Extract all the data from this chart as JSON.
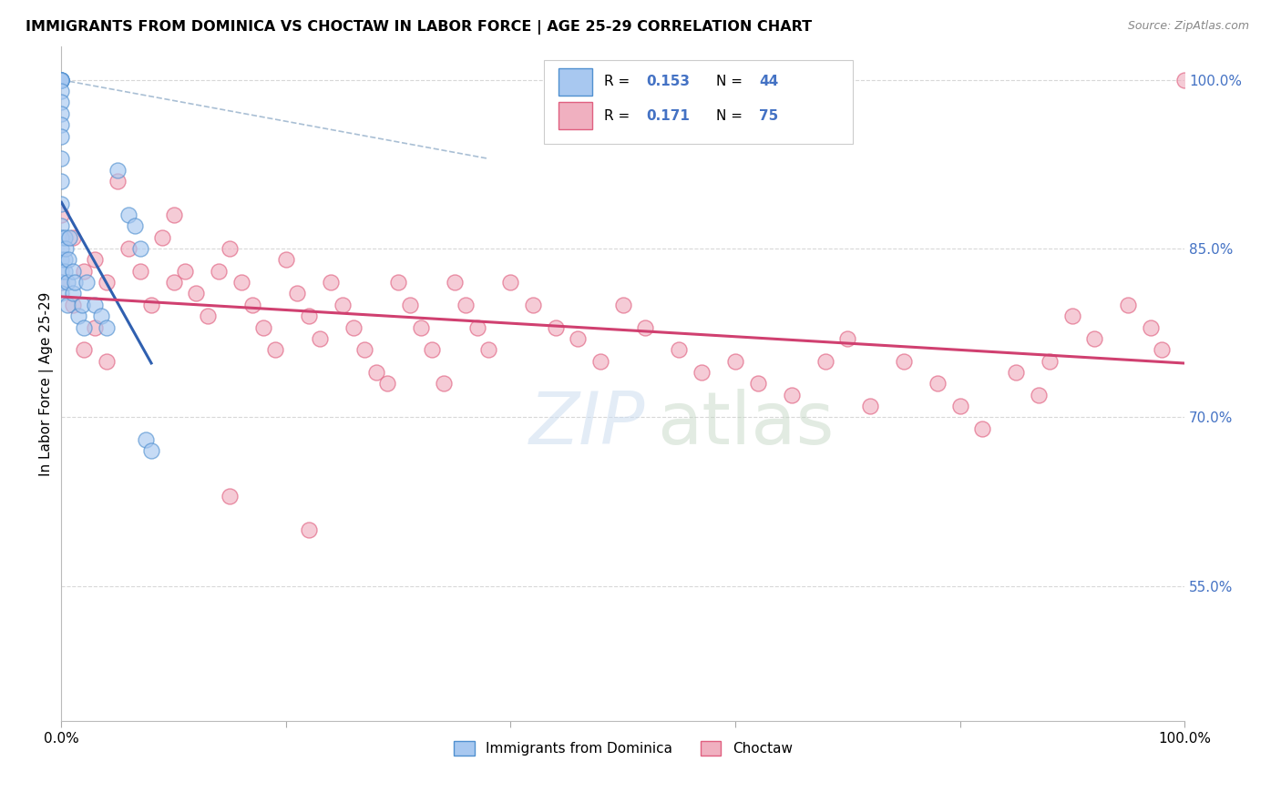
{
  "title": "IMMIGRANTS FROM DOMINICA VS CHOCTAW IN LABOR FORCE | AGE 25-29 CORRELATION CHART",
  "source": "Source: ZipAtlas.com",
  "ylabel": "In Labor Force | Age 25-29",
  "y_tick_right": [
    0.55,
    0.7,
    0.85,
    1.0
  ],
  "y_tick_right_labels": [
    "55.0%",
    "70.0%",
    "85.0%",
    "100.0%"
  ],
  "legend_label_blue": "Immigrants from Dominica",
  "legend_label_pink": "Choctaw",
  "legend_blue_r": "0.153",
  "legend_blue_n": "44",
  "legend_pink_r": "0.171",
  "legend_pink_n": "75",
  "blue_face": "#a8c8f0",
  "blue_edge": "#5090d0",
  "pink_face": "#f0b0c0",
  "pink_edge": "#e06080",
  "blue_line": "#3060b0",
  "pink_line": "#d04070",
  "dash_color": "#a0b8d0",
  "grid_color": "#d8d8d8",
  "xlim": [
    0.0,
    1.0
  ],
  "ylim": [
    0.43,
    1.03
  ],
  "blue_x": [
    0.0,
    0.0,
    0.0,
    0.0,
    0.0,
    0.0,
    0.0,
    0.0,
    0.0,
    0.0,
    0.0,
    0.0,
    0.0,
    0.0,
    0.0,
    0.0,
    0.0,
    0.0,
    0.0,
    0.0,
    0.003,
    0.003,
    0.003,
    0.004,
    0.005,
    0.005,
    0.006,
    0.007,
    0.01,
    0.01,
    0.012,
    0.015,
    0.018,
    0.02,
    0.022,
    0.03,
    0.035,
    0.04,
    0.05,
    0.06,
    0.065,
    0.07,
    0.075,
    0.08
  ],
  "blue_y": [
    1.0,
    1.0,
    1.0,
    1.0,
    1.0,
    0.99,
    0.98,
    0.97,
    0.96,
    0.95,
    0.93,
    0.91,
    0.89,
    0.87,
    0.86,
    0.85,
    0.84,
    0.83,
    0.82,
    0.81,
    0.86,
    0.84,
    0.83,
    0.85,
    0.82,
    0.8,
    0.84,
    0.86,
    0.83,
    0.81,
    0.82,
    0.79,
    0.8,
    0.78,
    0.82,
    0.8,
    0.79,
    0.78,
    0.92,
    0.88,
    0.87,
    0.85,
    0.68,
    0.67
  ],
  "pink_x": [
    0.0,
    0.0,
    0.01,
    0.01,
    0.02,
    0.02,
    0.03,
    0.03,
    0.04,
    0.04,
    0.05,
    0.06,
    0.07,
    0.08,
    0.09,
    0.1,
    0.1,
    0.11,
    0.12,
    0.13,
    0.14,
    0.15,
    0.16,
    0.17,
    0.18,
    0.19,
    0.2,
    0.21,
    0.22,
    0.23,
    0.24,
    0.25,
    0.26,
    0.27,
    0.28,
    0.29,
    0.3,
    0.31,
    0.32,
    0.33,
    0.34,
    0.35,
    0.36,
    0.37,
    0.38,
    0.4,
    0.42,
    0.44,
    0.46,
    0.48,
    0.5,
    0.52,
    0.55,
    0.57,
    0.6,
    0.62,
    0.65,
    0.68,
    0.7,
    0.72,
    0.75,
    0.78,
    0.8,
    0.82,
    0.85,
    0.87,
    0.88,
    0.9,
    0.92,
    0.95,
    0.97,
    0.98,
    1.0,
    0.15,
    0.22
  ],
  "pink_y": [
    0.88,
    0.82,
    0.86,
    0.8,
    0.83,
    0.76,
    0.84,
    0.78,
    0.82,
    0.75,
    0.91,
    0.85,
    0.83,
    0.8,
    0.86,
    0.88,
    0.82,
    0.83,
    0.81,
    0.79,
    0.83,
    0.85,
    0.82,
    0.8,
    0.78,
    0.76,
    0.84,
    0.81,
    0.79,
    0.77,
    0.82,
    0.8,
    0.78,
    0.76,
    0.74,
    0.73,
    0.82,
    0.8,
    0.78,
    0.76,
    0.73,
    0.82,
    0.8,
    0.78,
    0.76,
    0.82,
    0.8,
    0.78,
    0.77,
    0.75,
    0.8,
    0.78,
    0.76,
    0.74,
    0.75,
    0.73,
    0.72,
    0.75,
    0.77,
    0.71,
    0.75,
    0.73,
    0.71,
    0.69,
    0.74,
    0.72,
    0.75,
    0.79,
    0.77,
    0.8,
    0.78,
    0.76,
    1.0,
    0.63,
    0.6
  ]
}
